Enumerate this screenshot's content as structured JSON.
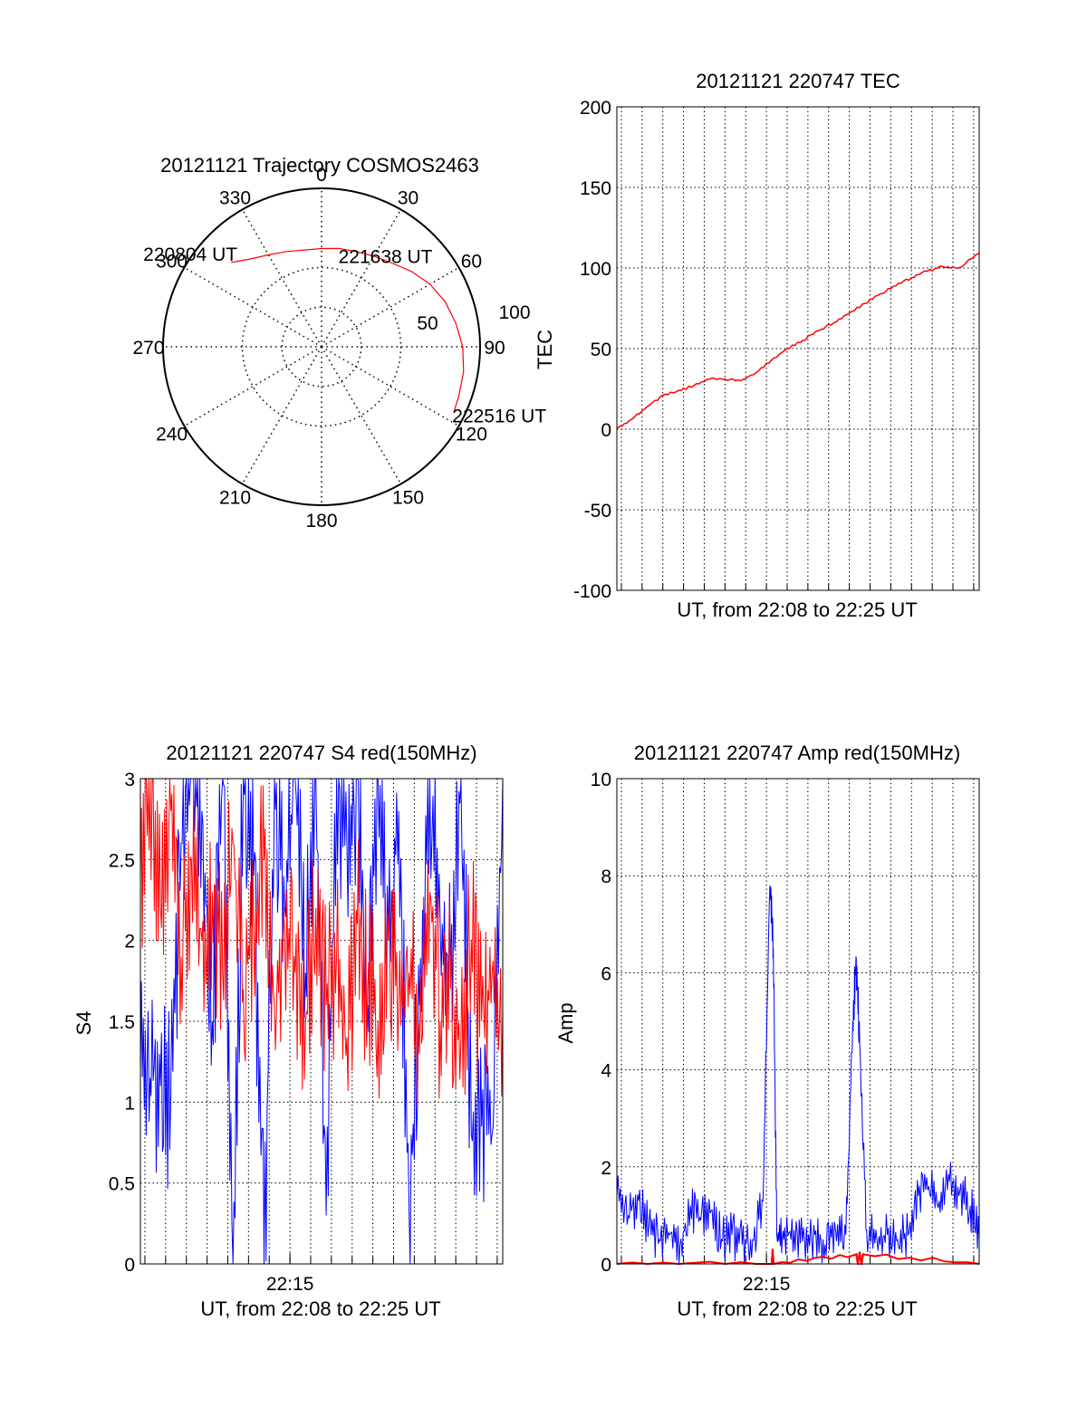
{
  "colors": {
    "primary": "#ff0000",
    "secondary": "#0000ff",
    "axis": "#000000",
    "grid": "#000000"
  },
  "chart_data": [
    {
      "type": "polar",
      "title": "20121121 Trajectory COSMOS2463",
      "angle_labels": [
        "0",
        "30",
        "60",
        "90",
        "120",
        "150",
        "180",
        "210",
        "240",
        "270",
        "300",
        "330"
      ],
      "radius_labels": [
        "50",
        "100"
      ],
      "rlim": [
        0,
        100
      ],
      "zero_direction": "north",
      "rotation": "clockwise",
      "series": [
        {
          "color": "#ff0000",
          "points": [
            [
              313,
              78
            ],
            [
              320,
              72
            ],
            [
              330,
              67
            ],
            [
              340,
              64
            ],
            [
              350,
              62
            ],
            [
              0,
              62
            ],
            [
              10,
              63
            ],
            [
              20,
              64
            ],
            [
              30,
              66
            ],
            [
              40,
              69
            ],
            [
              50,
              74
            ],
            [
              60,
              79
            ],
            [
              70,
              83
            ],
            [
              80,
              86
            ],
            [
              90,
              89
            ],
            [
              100,
              91
            ],
            [
              110,
              92
            ],
            [
              116,
              93
            ]
          ]
        }
      ],
      "annotations": [
        {
          "text": "220804 UT",
          "azimuth": 313,
          "radius": 78
        },
        {
          "text": "221638 UT",
          "azimuth": 40,
          "radius": 69
        },
        {
          "text": "222516 UT",
          "azimuth": 116,
          "radius": 93
        }
      ]
    },
    {
      "type": "line",
      "title": "20121121 220747 TEC",
      "xlabel": "UT, from 22:08 to 22:25 UT",
      "ylabel": "TEC",
      "xlim": [
        "22:07:47",
        "22:25:16"
      ],
      "ylim": [
        -100,
        200
      ],
      "yticks": [
        -100,
        -50,
        0,
        50,
        100,
        150,
        200
      ],
      "grid": true,
      "series": [
        {
          "color": "#ff0000",
          "x": [
            "22:07:47",
            "22:08:30",
            "22:09:15",
            "22:10:00",
            "22:10:45",
            "22:11:30",
            "22:12:15",
            "22:13:00",
            "22:13:45",
            "22:14:30",
            "22:15:15",
            "22:16:00",
            "22:16:45",
            "22:17:30",
            "22:18:15",
            "22:19:00",
            "22:19:45",
            "22:20:30",
            "22:21:15",
            "22:22:00",
            "22:22:45",
            "22:23:30",
            "22:24:15",
            "22:25:16"
          ],
          "y": [
            0,
            6,
            14,
            21,
            24,
            27,
            31,
            31,
            30,
            35,
            43,
            50,
            55,
            61,
            66,
            72,
            78,
            84,
            89,
            94,
            98,
            101,
            100,
            109
          ]
        }
      ]
    },
    {
      "type": "line",
      "title": "20121121 220747 S4 red(150MHz)",
      "xlabel": "UT, from 22:08 to 22:25 UT",
      "ylabel": "S4",
      "xtick_labels": [
        "22:15"
      ],
      "xtick_values": [
        "22:15:00"
      ],
      "xlim": [
        "22:07:47",
        "22:25:16"
      ],
      "ylim": [
        0,
        3
      ],
      "yticks": [
        0,
        0.5,
        1,
        1.5,
        2,
        2.5,
        3
      ],
      "grid": true,
      "series": [
        {
          "color": "#0000ff",
          "x": [
            "22:07:47",
            "22:08:15",
            "22:08:45",
            "22:09:15",
            "22:09:45",
            "22:10:15",
            "22:10:45",
            "22:11:15",
            "22:11:45",
            "22:12:15",
            "22:12:45",
            "22:13:15",
            "22:13:45",
            "22:14:15",
            "22:14:45",
            "22:15:15",
            "22:15:45",
            "22:16:15",
            "22:16:45",
            "22:17:15",
            "22:17:45",
            "22:18:15",
            "22:18:45",
            "22:19:15",
            "22:19:45",
            "22:20:15",
            "22:20:45",
            "22:21:15",
            "22:21:45",
            "22:22:15",
            "22:22:45",
            "22:23:15",
            "22:23:45",
            "22:24:15",
            "22:24:45",
            "22:25:16"
          ],
          "y": [
            1.2,
            1.15,
            1.1,
            1.05,
            2.6,
            3.0,
            2.8,
            1.5,
            3.0,
            0.0,
            3.0,
            2.4,
            0.0,
            3.0,
            2.2,
            3.0,
            1.8,
            3.0,
            0.3,
            3.0,
            2.6,
            3.0,
            1.6,
            3.0,
            2.0,
            2.8,
            0.3,
            1.6,
            3.0,
            2.1,
            1.8,
            3.0,
            0.8,
            0.85,
            0.8,
            3.0
          ]
        },
        {
          "color": "#ff0000",
          "x": [
            "22:07:47",
            "22:08:15",
            "22:08:45",
            "22:09:15",
            "22:09:45",
            "22:10:15",
            "22:10:45",
            "22:11:15",
            "22:11:45",
            "22:12:15",
            "22:12:45",
            "22:13:15",
            "22:13:45",
            "22:14:15",
            "22:14:45",
            "22:15:15",
            "22:15:45",
            "22:16:15",
            "22:16:45",
            "22:17:15",
            "22:17:45",
            "22:18:15",
            "22:18:45",
            "22:19:15",
            "22:19:45",
            "22:20:15",
            "22:20:45",
            "22:21:15",
            "22:21:45",
            "22:22:15",
            "22:22:45",
            "22:23:15",
            "22:23:45",
            "22:24:15",
            "22:24:45",
            "22:25:16"
          ],
          "y": [
            2.4,
            3.0,
            2.2,
            2.8,
            1.9,
            2.5,
            2.0,
            2.3,
            1.8,
            2.6,
            1.7,
            2.1,
            2.5,
            1.6,
            2.0,
            1.8,
            1.5,
            2.2,
            1.6,
            1.9,
            1.4,
            2.1,
            1.7,
            1.5,
            2.0,
            1.6,
            1.8,
            1.3,
            2.3,
            1.5,
            1.7,
            1.4,
            2.0,
            1.5,
            1.8,
            1.6
          ]
        }
      ]
    },
    {
      "type": "line",
      "title": "20121121 220747 Amp red(150MHz)",
      "xlabel": "UT, from 22:08 to 22:25 UT",
      "ylabel": "Amp",
      "xtick_labels": [
        "22:15"
      ],
      "xtick_values": [
        "22:15:00"
      ],
      "xlim": [
        "22:07:47",
        "22:25:16"
      ],
      "ylim": [
        0,
        10
      ],
      "yticks": [
        0,
        2,
        4,
        6,
        8,
        10
      ],
      "grid": true,
      "series": [
        {
          "color": "#0000ff",
          "x": [
            "22:07:47",
            "22:08:20",
            "22:08:50",
            "22:09:20",
            "22:09:50",
            "22:10:20",
            "22:10:50",
            "22:11:20",
            "22:11:50",
            "22:12:20",
            "22:12:50",
            "22:13:20",
            "22:13:50",
            "22:14:20",
            "22:14:50",
            "22:15:10",
            "22:15:20",
            "22:15:30",
            "22:15:50",
            "22:16:20",
            "22:16:50",
            "22:17:20",
            "22:17:50",
            "22:18:20",
            "22:18:50",
            "22:19:10",
            "22:19:20",
            "22:19:30",
            "22:19:50",
            "22:20:20",
            "22:20:50",
            "22:21:20",
            "22:21:50",
            "22:22:20",
            "22:22:50",
            "22:23:20",
            "22:23:50",
            "22:24:20",
            "22:24:50",
            "22:25:16"
          ],
          "y": [
            1.4,
            1.0,
            1.3,
            0.8,
            0.5,
            0.6,
            0.4,
            1.2,
            0.9,
            1.1,
            0.5,
            0.6,
            0.4,
            0.5,
            1.3,
            7.8,
            6.5,
            0.6,
            0.5,
            0.7,
            0.5,
            0.6,
            0.4,
            0.7,
            0.6,
            5.0,
            6.3,
            4.5,
            0.7,
            0.5,
            0.6,
            0.5,
            0.6,
            1.4,
            1.6,
            1.3,
            1.7,
            1.5,
            1.2,
            0.5
          ]
        },
        {
          "color": "#ff0000",
          "x": [
            "22:07:47",
            "22:15:15",
            "22:15:18",
            "22:15:21",
            "22:19:20",
            "22:19:25",
            "22:19:30",
            "22:19:35",
            "22:19:40",
            "22:25:16"
          ],
          "y": [
            0,
            0,
            0.3,
            0,
            0.2,
            0,
            0.25,
            0,
            0.2,
            0
          ]
        }
      ]
    }
  ]
}
